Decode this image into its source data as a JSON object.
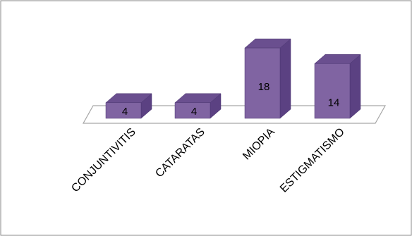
{
  "chart_data": {
    "type": "bar",
    "categories": [
      "CONJUNTIVITIS",
      "CATARATAS",
      "MIOPIA",
      "ESTIGMATISMO"
    ],
    "values": [
      4,
      4,
      18,
      14
    ],
    "title": "",
    "xlabel": "",
    "ylabel": "",
    "ylim": [
      0,
      18
    ],
    "style": "3d-column",
    "grid": false,
    "legend": "none",
    "data_labels": true
  },
  "colors": {
    "bar_front": "#8064a2",
    "bar_top": "#6a4f8f",
    "bar_side": "#5b4182",
    "floor_line": "#a6a6a6",
    "frame_border": "#868686"
  }
}
